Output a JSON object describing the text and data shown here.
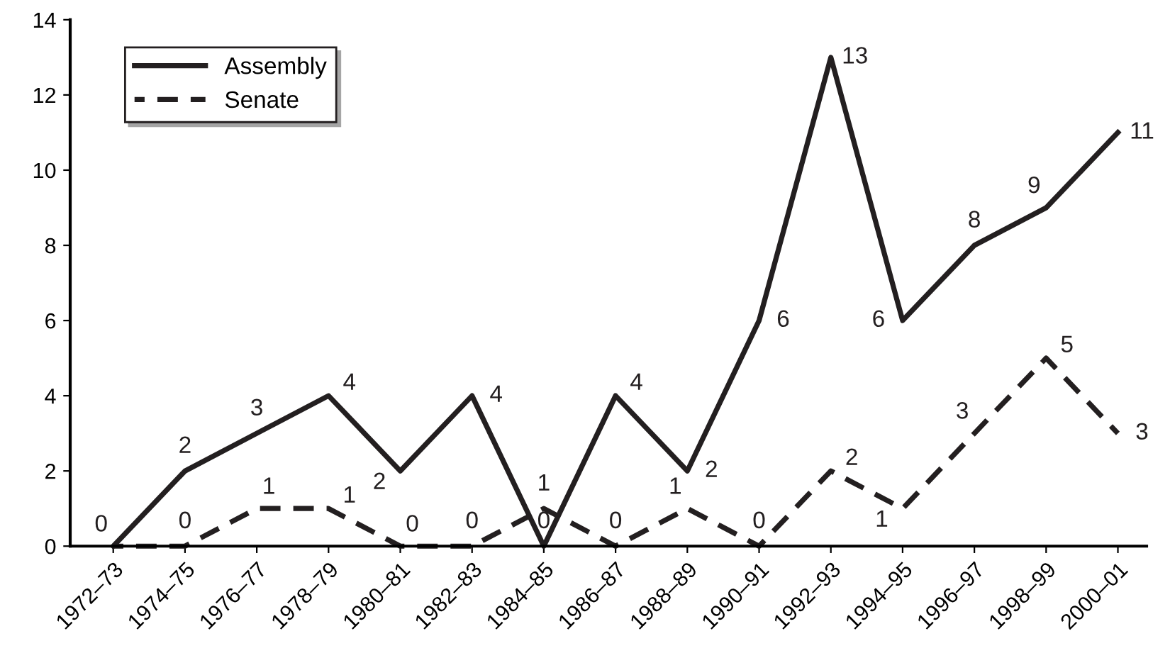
{
  "chart_data": {
    "type": "line",
    "categories": [
      "1972–73",
      "1974–75",
      "1976–77",
      "1978–79",
      "1980–81",
      "1982–83",
      "1984–85",
      "1986–87",
      "1988–89",
      "1990–91",
      "1992–93",
      "1994–95",
      "1996–97",
      "1998–99",
      "2000–01"
    ],
    "series": [
      {
        "name": "Assembly",
        "color": "#231f20",
        "line_style": "solid",
        "values": [
          0,
          2,
          3,
          4,
          2,
          4,
          0,
          4,
          2,
          6,
          13,
          6,
          8,
          9,
          11
        ],
        "value_labels": [
          "0",
          "2",
          "3",
          "4",
          "2",
          "4",
          "0",
          "4",
          "2",
          "6",
          "13",
          "6",
          "8",
          "9",
          "11"
        ]
      },
      {
        "name": "Senate",
        "color": "#231f20",
        "line_style": "dashed",
        "values": [
          0,
          0,
          1,
          1,
          0,
          0,
          1,
          0,
          1,
          0,
          2,
          1,
          3,
          5,
          3
        ],
        "value_labels": [
          null,
          "0",
          "1",
          "1",
          "0",
          "0",
          "1",
          "0",
          "1",
          "0",
          "2",
          "1",
          "3",
          "5",
          "3"
        ]
      }
    ],
    "ylim": [
      0,
      14
    ],
    "yticks": [
      0,
      2,
      4,
      6,
      8,
      10,
      12,
      14
    ],
    "legend": "top left",
    "grid": false,
    "marker": "none"
  }
}
